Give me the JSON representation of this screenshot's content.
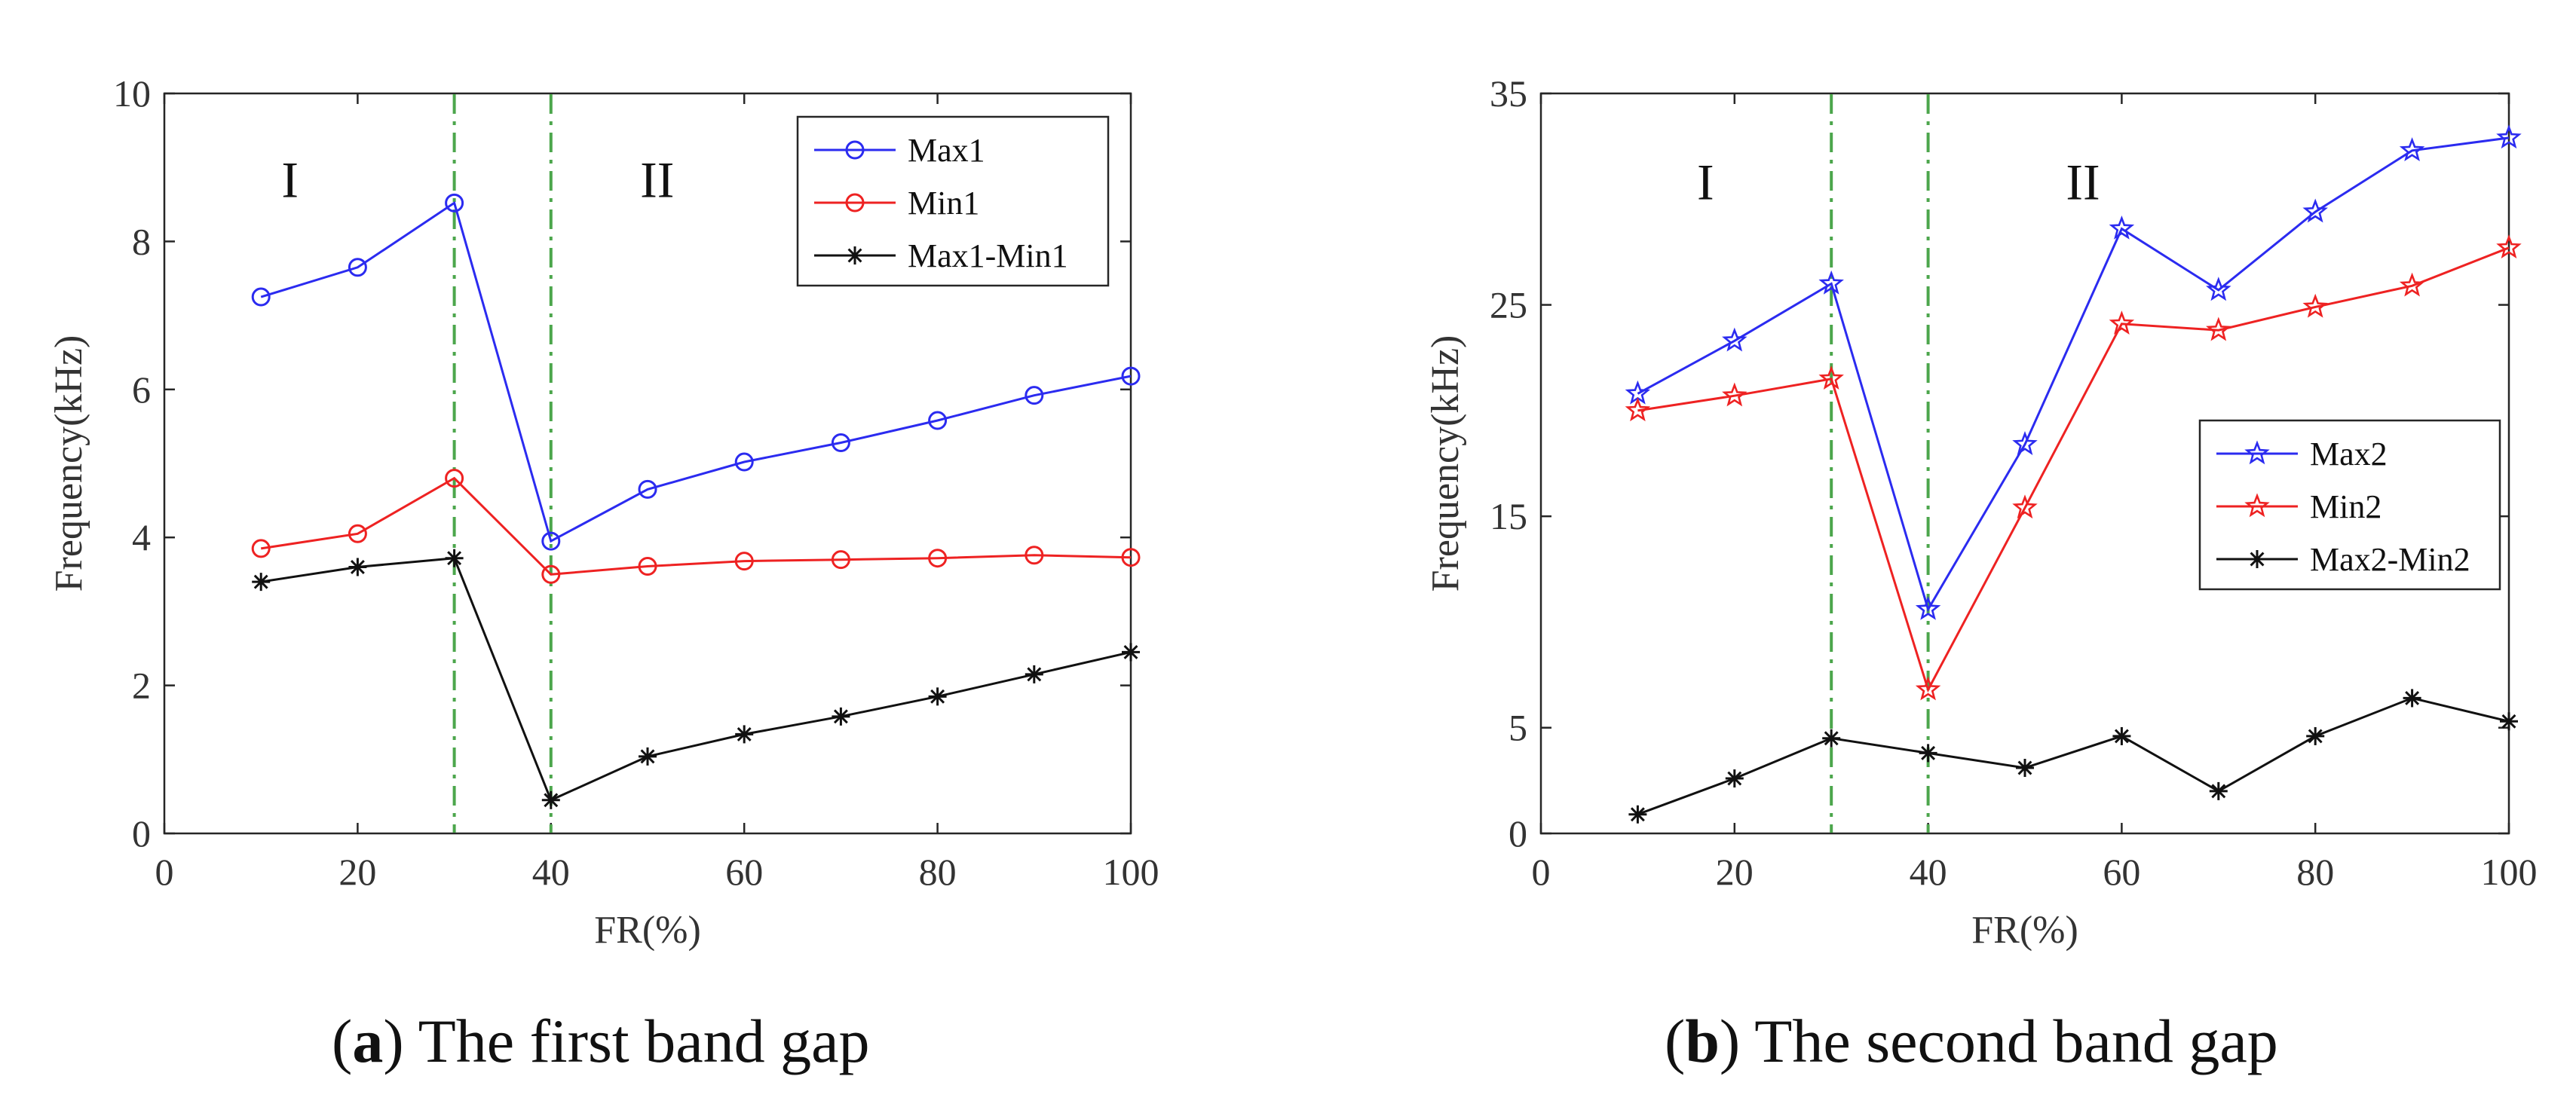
{
  "chart_data": [
    {
      "type": "line",
      "panel": "a",
      "caption_letter": "a",
      "caption_text": ") The first band gap",
      "xlabel": "FR(%)",
      "ylabel": "Frequency(kHz)",
      "xlim": [
        0,
        100
      ],
      "ylim": [
        0,
        10
      ],
      "xticks": [
        0,
        20,
        40,
        60,
        80,
        100
      ],
      "yticks": [
        0,
        2,
        4,
        6,
        8,
        10
      ],
      "ytick_labels": [
        "0",
        "2",
        "4",
        "6",
        "8",
        "10"
      ],
      "vlines": [
        30,
        40
      ],
      "vline_color": "#4ca64c",
      "regions": [
        {
          "label": "I",
          "x": 13,
          "y": 8.6
        },
        {
          "label": "II",
          "x": 51,
          "y": 8.6
        }
      ],
      "legend_position": "top-right",
      "x": [
        10,
        20,
        30,
        40,
        50,
        60,
        70,
        80,
        90,
        100
      ],
      "series": [
        {
          "name": "Max1",
          "color": "#2b2bf0",
          "marker": "circle",
          "values": [
            7.25,
            7.65,
            8.52,
            3.95,
            4.65,
            5.02,
            5.28,
            5.58,
            5.92,
            6.18
          ]
        },
        {
          "name": "Min1",
          "color": "#ee2222",
          "marker": "circle",
          "values": [
            3.85,
            4.05,
            4.8,
            3.5,
            3.61,
            3.68,
            3.7,
            3.72,
            3.76,
            3.73
          ]
        },
        {
          "name": "Max1-Min1",
          "color": "#111111",
          "marker": "asterisk",
          "values": [
            3.4,
            3.6,
            3.72,
            0.45,
            1.04,
            1.34,
            1.58,
            1.85,
            2.15,
            2.45
          ]
        }
      ]
    },
    {
      "type": "line",
      "panel": "b",
      "caption_letter": "b",
      "caption_text": ") The second band gap",
      "xlabel": "FR(%)",
      "ylabel": "Frequency(kHz)",
      "xlim": [
        0,
        100
      ],
      "ylim": [
        0,
        35
      ],
      "xticks": [
        0,
        20,
        40,
        60,
        80,
        100
      ],
      "yticks": [
        0,
        5,
        15,
        25,
        35
      ],
      "ytick_labels": [
        "0",
        "5",
        "15",
        "25",
        "35"
      ],
      "vlines": [
        30,
        40
      ],
      "vline_color": "#4ca64c",
      "regions": [
        {
          "label": "I",
          "x": 17,
          "y": 30
        },
        {
          "label": "II",
          "x": 56,
          "y": 30
        }
      ],
      "legend_position": "center-right",
      "x": [
        10,
        20,
        30,
        40,
        50,
        60,
        70,
        80,
        90,
        100
      ],
      "series": [
        {
          "name": "Max2",
          "color": "#2b2bf0",
          "marker": "star",
          "values": [
            20.8,
            23.3,
            26.0,
            10.6,
            18.4,
            28.6,
            25.7,
            29.4,
            32.3,
            32.9
          ]
        },
        {
          "name": "Min2",
          "color": "#ee2222",
          "marker": "star",
          "values": [
            20.0,
            20.7,
            21.5,
            6.8,
            15.4,
            24.1,
            23.8,
            24.9,
            25.9,
            27.7
          ]
        },
        {
          "name": "Max2-Min2",
          "color": "#111111",
          "marker": "asterisk",
          "values": [
            0.9,
            2.6,
            4.5,
            3.8,
            3.1,
            4.6,
            2.0,
            4.6,
            6.4,
            5.3
          ]
        }
      ]
    }
  ]
}
